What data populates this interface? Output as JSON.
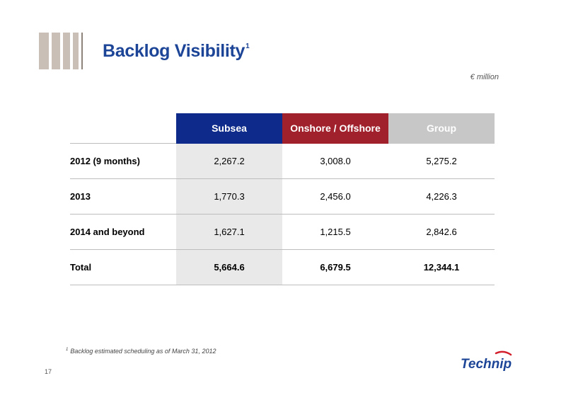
{
  "header": {
    "title": "Backlog Visibility",
    "title_footnote_mark": "1",
    "unit": "€ million"
  },
  "table": {
    "columns": [
      "Subsea",
      "Onshore / Offshore",
      "Group"
    ],
    "rows": [
      {
        "label": "2012 (9 months)",
        "values": [
          "2,267.2",
          "3,008.0",
          "5,275.2"
        ]
      },
      {
        "label": "2013",
        "values": [
          "1,770.3",
          "2,456.0",
          "4,226.3"
        ]
      },
      {
        "label": "2014 and beyond",
        "values": [
          "1,627.1",
          "1,215.5",
          "2,842.6"
        ]
      },
      {
        "label": "Total",
        "values": [
          "5,664.6",
          "6,679.5",
          "12,344.1"
        ]
      }
    ]
  },
  "footer": {
    "footnote_mark": "1",
    "footnote": "Backlog estimated scheduling as of March 31, 2012",
    "page_number": "17",
    "logo_text": "Technip"
  },
  "colors": {
    "title": "#1d4597",
    "subsea_header": "#0e2a8a",
    "onshore_offshore_header": "#a0202b",
    "group_header": "#c7c7c7",
    "logo_blue": "#1d4597",
    "logo_red": "#d21f2b"
  }
}
